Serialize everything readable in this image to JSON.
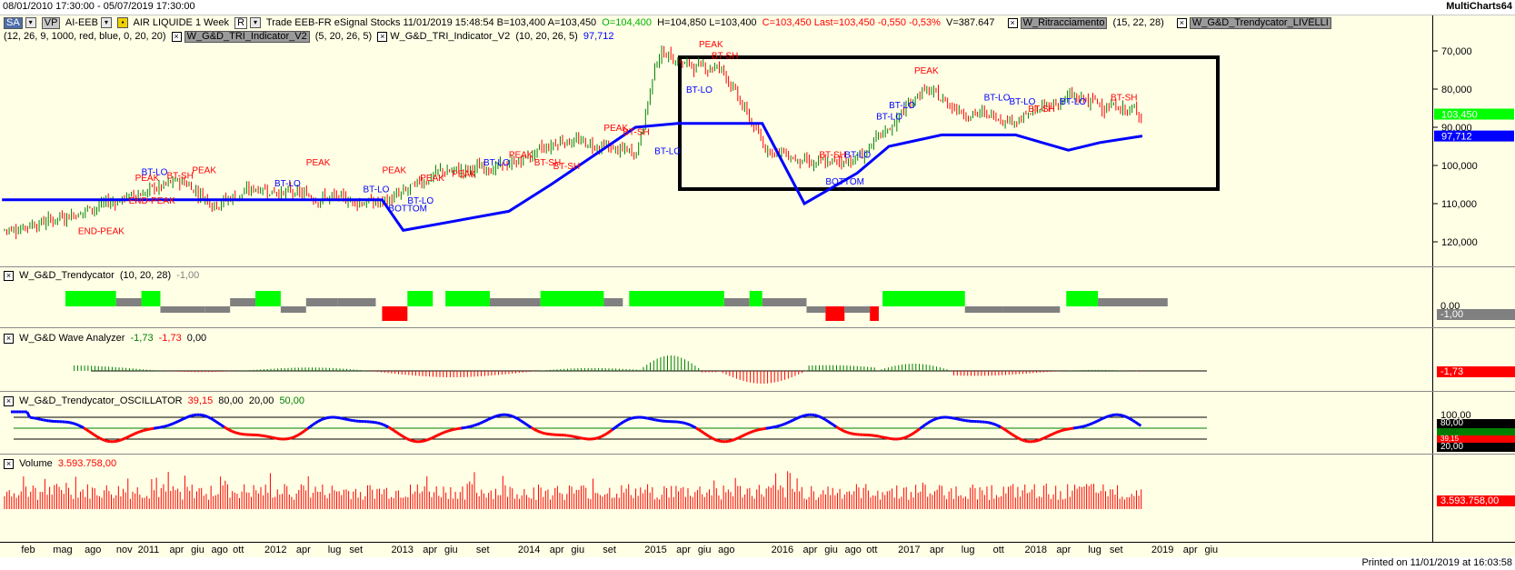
{
  "window": {
    "date_range": "08/01/2010 17:30:00 - 05/07/2019 17:30:00",
    "app_name": "MultiCharts64"
  },
  "main_panel": {
    "workspace_tag": "SA",
    "vp_tag": "VP",
    "symbol": "AI-EEB",
    "symbol_name": "AIR LIQUIDE 1 Week",
    "r_tag": "R",
    "trade_info": "Trade  EEB-FR  eSignal Stocks  11/01/2019  15:48:54  B=103,400  A=103,450",
    "open_value": "O=104,400",
    "hl_values": "H=104,850  L=103,400",
    "change_values": "C=103,450  Last=103,450  -0,550  -0,53%",
    "volume_value": "V=387.647",
    "indicators": [
      {
        "name": "W_Ritracciamento",
        "params": "(15, 22, 28)"
      },
      {
        "name": "W_G&D_Trendycator_LIVELLI",
        "params": "(12, 26, 9, 1000, red, blue, 0, 20, 20)"
      },
      {
        "name": "W_G&D_TRI_Indicator_V2",
        "params": "(5, 20, 26, 5)"
      },
      {
        "name": "W_G&D_TRI_Indicator_V2",
        "params": "(10, 20, 26, 5)",
        "value": "97,712"
      }
    ],
    "price_axis_ticks": [
      "120,000",
      "110,000",
      "100,000",
      "90,000",
      "80,000",
      "70,000"
    ],
    "last_price_label": "103,450",
    "indicator_label": "97,712",
    "annotations": [
      {
        "text": "PEAK",
        "kind": "peak"
      },
      {
        "text": "END-PEAK",
        "kind": "peak"
      },
      {
        "text": "BT-SH",
        "kind": "peak"
      },
      {
        "text": "BT-LO",
        "kind": "trough"
      },
      {
        "text": "BOTTOM",
        "kind": "trough"
      }
    ]
  },
  "trendycator_panel": {
    "name": "W_G&D_Trendycator",
    "params": "(10, 20, 28)",
    "value": "-1,00",
    "ticks": [
      "0,00"
    ],
    "value_label": "-1,00"
  },
  "wave_panel": {
    "name": "W_G&D Wave Analyzer",
    "value1": "-1,73",
    "value2": "-1,73",
    "value3": "0,00",
    "value_label": "-1,73"
  },
  "oscillator_panel": {
    "name": "W_G&D_Trendycator_OSCILLATOR",
    "value": "39,15",
    "level_high": "80,00",
    "level_low": "20,00",
    "level_mid": "50,00",
    "ticks": [
      "100,00"
    ],
    "labels": [
      "80,00",
      "50,00",
      "39,15",
      "20,00"
    ]
  },
  "volume_panel": {
    "name": "Volume",
    "value": "3.593.758,00",
    "value_label": "3.593.758,00"
  },
  "x_axis": {
    "labels": [
      "feb",
      "mag",
      "ago",
      "nov",
      "2011",
      "apr",
      "giu",
      "ago",
      "ott",
      "2012",
      "apr",
      "lug",
      "set",
      "2013",
      "apr",
      "giu",
      "set",
      "2014",
      "apr",
      "giu",
      "set",
      "2015",
      "apr",
      "giu",
      "ago",
      "2016",
      "apr",
      "giu",
      "ago",
      "ott",
      "2017",
      "apr",
      "lug",
      "ott",
      "2018",
      "apr",
      "lug",
      "set",
      "2019",
      "apr",
      "giu"
    ]
  },
  "footer": {
    "printed": "Printed on 11/01/2019 at 16:03:58"
  },
  "colors": {
    "background": "#ffffe6",
    "up_bar": "#008000",
    "down_bar": "#ff0000",
    "trend_line": "#0000ff",
    "peak_label": "#ff0000",
    "trough_label": "#0000ff",
    "trend_up": "#00ff00",
    "trend_neutral": "#808080",
    "trend_down": "#ff0000"
  },
  "chart_data": [
    {
      "type": "line",
      "title": "AIR LIQUIDE 1 Week",
      "x_range": [
        "2010-01-08",
        "2019-07-05"
      ],
      "ylim": [
        65,
        125
      ],
      "y_ticks": [
        70,
        80,
        90,
        100,
        110,
        120
      ],
      "series": [
        {
          "name": "AI-EEB",
          "x": [
            "2010-01",
            "2010-06",
            "2011-01",
            "2011-06",
            "2011-09",
            "2012-01",
            "2012-06",
            "2013-01",
            "2013-06",
            "2014-01",
            "2014-06",
            "2015-01",
            "2015-03",
            "2015-06",
            "2015-09",
            "2016-01",
            "2016-06",
            "2016-10",
            "2017-01",
            "2017-04",
            "2017-08",
            "2018-01",
            "2018-06",
            "2018-09",
            "2019-01"
          ],
          "values": [
            73,
            76,
            82,
            86,
            80,
            84,
            82,
            80,
            88,
            90,
            97,
            93,
            120,
            116,
            116,
            95,
            90,
            92,
            100,
            110,
            104,
            102,
            108,
            106,
            103.45
          ]
        },
        {
          "name": "W_G&D_TRI_Indicator_V2",
          "x": [
            "2010-01",
            "2013-01",
            "2013-03",
            "2014-01",
            "2014-05",
            "2015-01",
            "2015-05",
            "2016-01",
            "2016-05",
            "2016-10",
            "2017-01",
            "2017-06",
            "2018-01",
            "2018-06",
            "2018-09",
            "2019-01"
          ],
          "values": [
            81,
            81,
            73,
            78,
            85,
            100,
            101,
            101,
            80,
            88,
            95,
            98,
            98,
            94,
            96,
            97.712
          ]
        }
      ]
    },
    {
      "type": "bar",
      "title": "Volume",
      "last_value": 3593758
    }
  ]
}
